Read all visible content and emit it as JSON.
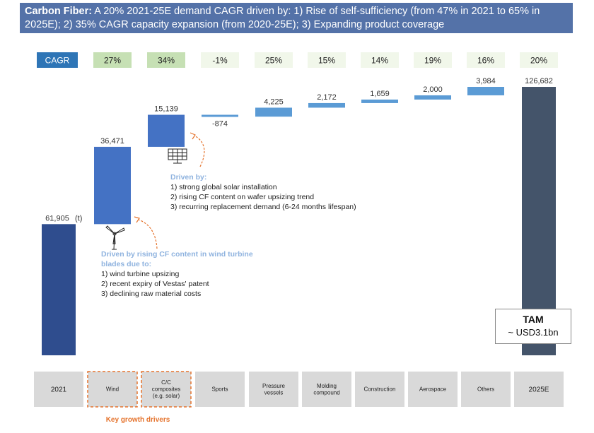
{
  "header": {
    "title_bold": "Carbon Fiber:",
    "title_rest": " A 20% 2021-25E demand CAGR driven by: 1) Rise of self-sufficiency (from 47% in 2021 to 65% in 2025E); 2) 35% CAGR capacity expansion (from 2020-25E); 3) Expanding product coverage"
  },
  "cagr_label": "CAGR",
  "unit_label": "(t)",
  "chart_data": {
    "type": "waterfall",
    "categories": [
      "2021",
      "Wind",
      "C/C composites (e.g. solar)",
      "Sports",
      "Pressure vessels",
      "Molding compound",
      "Construction",
      "Aerospace",
      "Others",
      "2025E"
    ],
    "category_labels": [
      [
        "2021"
      ],
      [
        "Wind"
      ],
      [
        "C/C",
        "composites",
        "(e.g. solar)"
      ],
      [
        "Sports"
      ],
      [
        "Pressure",
        "vessels"
      ],
      [
        "Molding",
        "compound"
      ],
      [
        "Construction"
      ],
      [
        "Aerospace"
      ],
      [
        "Others"
      ],
      [
        "2025E"
      ]
    ],
    "values": [
      61905,
      36471,
      15139,
      -874,
      4225,
      2172,
      1659,
      2000,
      3984,
      126682
    ],
    "value_labels": [
      "61,905",
      "36,471",
      "15,139",
      "-874",
      "4,225",
      "2,172",
      "1,659",
      "2,000",
      "3,984",
      "126,682"
    ],
    "cagr": [
      "27%",
      "34%",
      "-1%",
      "25%",
      "15%",
      "14%",
      "19%",
      "16%",
      "20%"
    ],
    "highlight_cagr": [
      true,
      true,
      false,
      false,
      false,
      false,
      false,
      false,
      false
    ],
    "key_drivers": [
      "Wind",
      "C/C composites (e.g. solar)"
    ],
    "colors": {
      "total": "#2f4d8e",
      "end": "#44546a",
      "major": "#4472c4",
      "minor": "#5b9bd5",
      "cagr_header": "#2e75b6",
      "cagr_highlight": "#c6e0b4",
      "cagr_normal": "#f1f7ea",
      "category_bg": "#d9d9d9",
      "driver_border": "#e5742e"
    }
  },
  "notes": {
    "wind": {
      "heading": "Driven by rising CF content in wind turbine blades due to:",
      "items": [
        "1) wind turbine upsizing",
        "2) recent expiry of Vestas' patent",
        "3) declining raw material costs"
      ]
    },
    "solar": {
      "heading": "Driven by:",
      "items": [
        "1) strong global solar installation",
        "2) rising CF content on wafer upsizing trend",
        "3) recurring replacement demand (6-24 months lifespan)"
      ]
    }
  },
  "tam": {
    "title": "TAM",
    "value": "~ USD3.1bn"
  },
  "footer": "Key growth drivers",
  "icons": [
    "wind-turbine-icon",
    "solar-panel-icon"
  ]
}
